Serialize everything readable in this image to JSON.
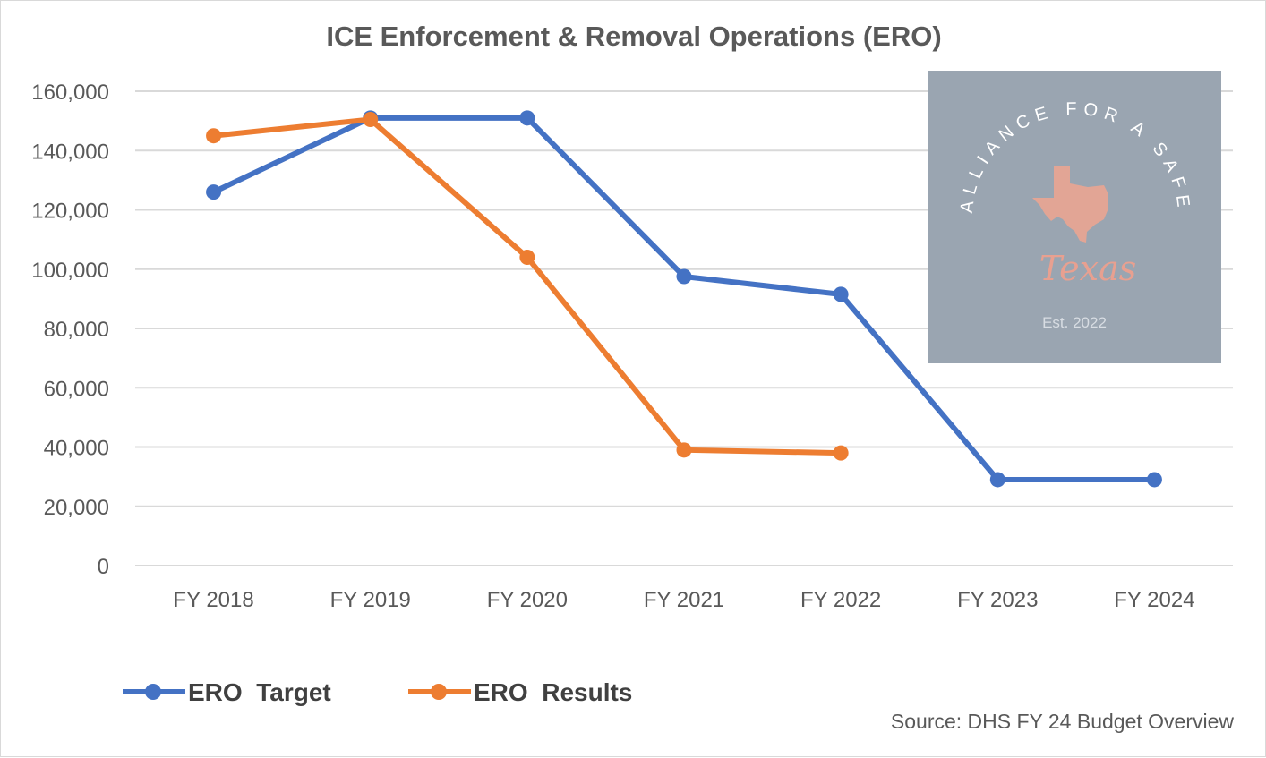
{
  "chart_data": {
    "type": "line",
    "title": "ICE Enforcement & Removal Operations (ERO)",
    "xlabel": "",
    "ylabel": "",
    "categories": [
      "FY 2018",
      "FY 2019",
      "FY 2020",
      "FY 2021",
      "FY 2022",
      "FY 2023",
      "FY 2024"
    ],
    "ylim": [
      0,
      160000
    ],
    "yticks": [
      0,
      20000,
      40000,
      60000,
      80000,
      100000,
      120000,
      140000,
      160000
    ],
    "ytick_labels": [
      "0",
      "20,000",
      "40,000",
      "60,000",
      "80,000",
      "100,000",
      "120,000",
      "140,000",
      "160,000"
    ],
    "grid": true,
    "legend_position": "bottom-left",
    "series": [
      {
        "name": "ERO  Target",
        "color": "#4472c4",
        "values": [
          126000,
          151000,
          151000,
          97500,
          91500,
          29000,
          29000
        ]
      },
      {
        "name": "ERO  Results",
        "color": "#ed7d31",
        "values": [
          145000,
          150500,
          104000,
          39000,
          38000,
          null,
          null
        ]
      }
    ]
  },
  "source_note": "Source: DHS FY 24 Budget Overview",
  "watermark": {
    "ring_text": "ALLIANCE FOR A SAFE",
    "script_text": "Texas",
    "est_text": "Est. 2022",
    "background_color": "#9aa5b1",
    "texas_color": "#e2a595",
    "icon": "texas-state-icon"
  }
}
